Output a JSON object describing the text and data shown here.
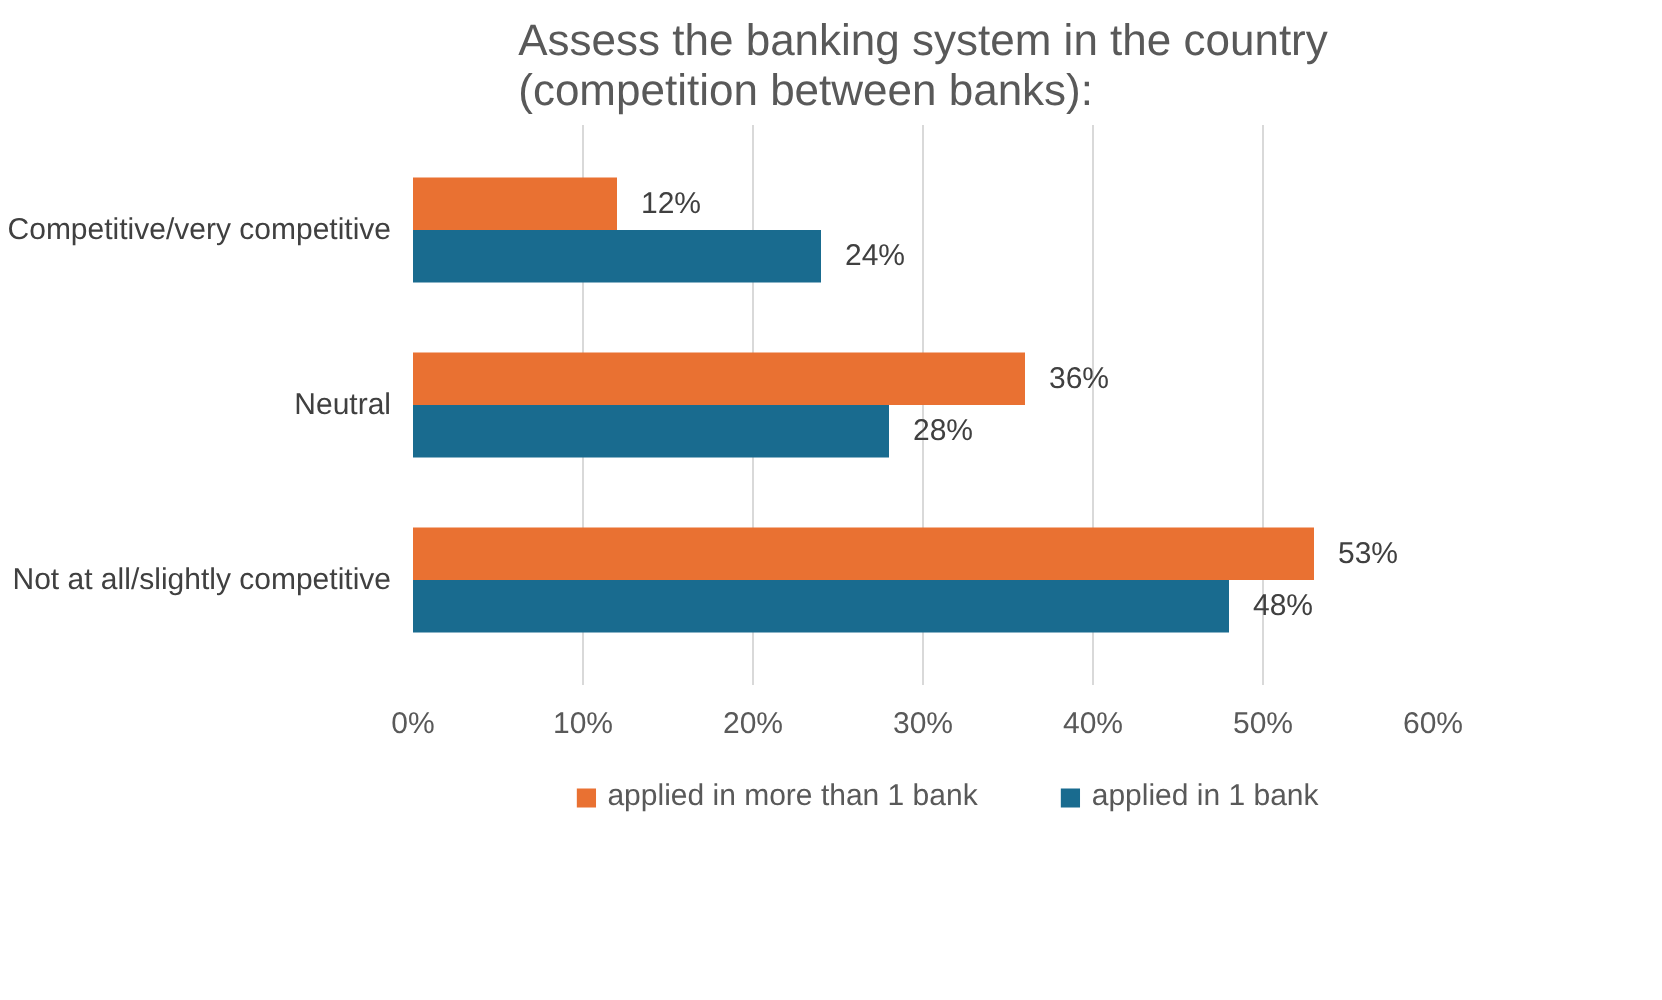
{
  "chart_data": {
    "type": "bar",
    "orientation": "horizontal",
    "title": "Assess the banking system in the country\n(competition between banks):",
    "categories": [
      "Competitive/very competitive",
      "Neutral",
      "Not at all/slightly competitive"
    ],
    "series": [
      {
        "name": "applied in more than 1 bank",
        "color": "#e97132",
        "values": [
          12,
          36,
          53
        ],
        "value_labels": [
          "12%",
          "36%",
          "53%"
        ]
      },
      {
        "name": "applied in 1 bank",
        "color": "#196b8f",
        "values": [
          24,
          28,
          48
        ],
        "value_labels": [
          "24%",
          "28%",
          "48%"
        ]
      }
    ],
    "xlim": [
      0,
      60
    ],
    "xticks": [
      {
        "value": 0,
        "label": "0%"
      },
      {
        "value": 10,
        "label": "10%"
      },
      {
        "value": 20,
        "label": "20%"
      },
      {
        "value": 30,
        "label": "30%"
      },
      {
        "value": 40,
        "label": "40%"
      },
      {
        "value": 50,
        "label": "50%"
      },
      {
        "value": 60,
        "label": "60%"
      }
    ],
    "grid": "x",
    "legend": "bottom"
  }
}
